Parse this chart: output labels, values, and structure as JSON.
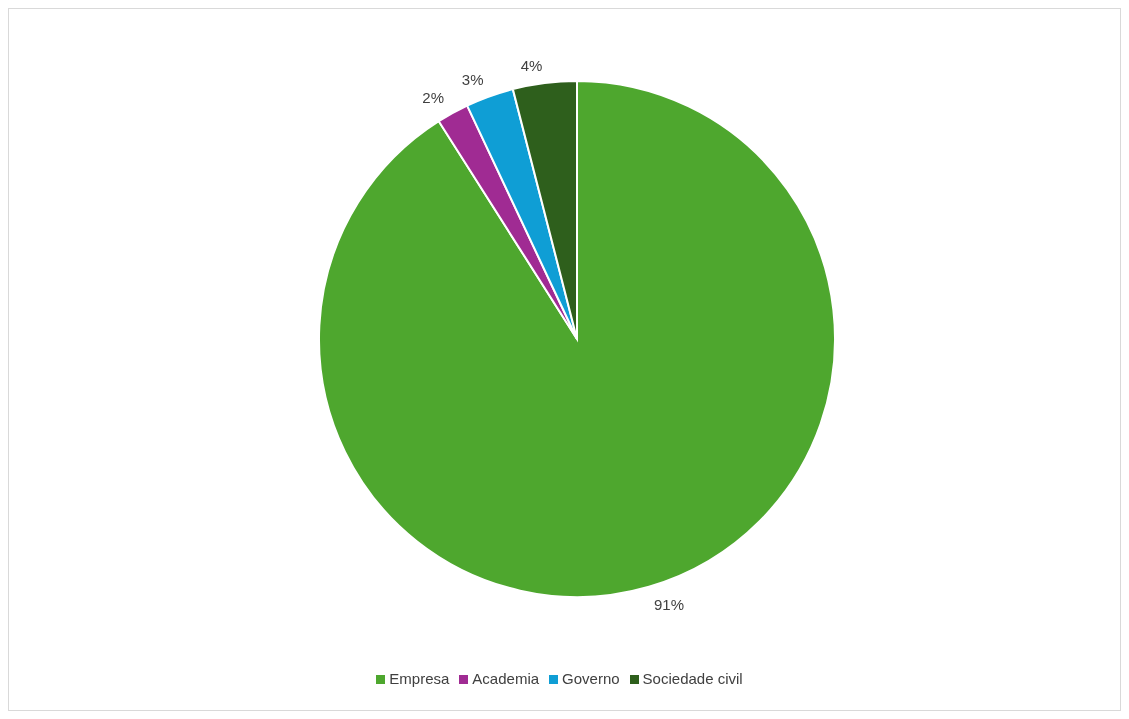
{
  "chart_data": {
    "type": "pie",
    "categories": [
      "Empresa",
      "Academia",
      "Governo",
      "Sociedade civil"
    ],
    "values": [
      91,
      2,
      3,
      4
    ],
    "colors": [
      "#4ea72e",
      "#a02b93",
      "#0f9ed5",
      "#2e5f1c"
    ],
    "value_labels": [
      "91%",
      "2%",
      "3%",
      "4%"
    ],
    "legend": "bottom"
  }
}
